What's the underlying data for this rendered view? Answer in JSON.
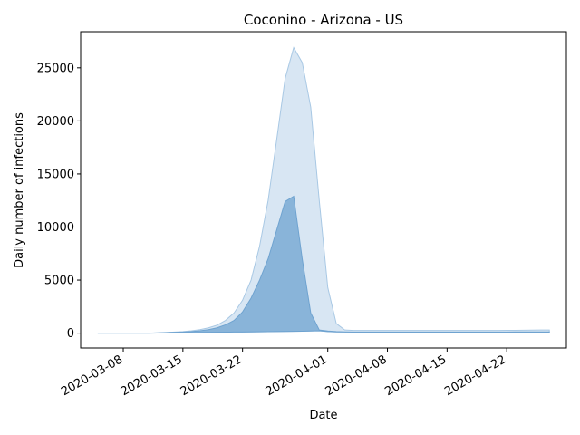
{
  "chart_data": {
    "type": "area",
    "title": "Coconino - Arizona - US",
    "xlabel": "Date",
    "ylabel": "Daily number of infections",
    "x_tick_labels": [
      "2020-03-08",
      "2020-03-15",
      "2020-03-22",
      "2020-04-01",
      "2020-04-08",
      "2020-04-15",
      "2020-04-22"
    ],
    "y_tick_labels": [
      "0",
      "5000",
      "10000",
      "15000",
      "20000",
      "25000"
    ],
    "x_ticks": [
      "2020-03-08",
      "2020-03-15",
      "2020-03-22",
      "2020-04-01",
      "2020-04-08",
      "2020-04-15",
      "2020-04-22"
    ],
    "y_ticks": [
      0,
      5000,
      10000,
      15000,
      20000,
      25000
    ],
    "xlim": [
      "2020-03-03",
      "2020-04-29"
    ],
    "ylim": [
      -1400,
      28400
    ],
    "grid": false,
    "legend": "none",
    "x": [
      "2020-03-05",
      "2020-03-06",
      "2020-03-07",
      "2020-03-08",
      "2020-03-09",
      "2020-03-10",
      "2020-03-11",
      "2020-03-12",
      "2020-03-13",
      "2020-03-14",
      "2020-03-15",
      "2020-03-16",
      "2020-03-17",
      "2020-03-18",
      "2020-03-19",
      "2020-03-20",
      "2020-03-21",
      "2020-03-22",
      "2020-03-23",
      "2020-03-24",
      "2020-03-25",
      "2020-03-26",
      "2020-03-27",
      "2020-03-28",
      "2020-03-29",
      "2020-03-30",
      "2020-03-31",
      "2020-04-01",
      "2020-04-02",
      "2020-04-03",
      "2020-04-04",
      "2020-04-05",
      "2020-04-06",
      "2020-04-07",
      "2020-04-08",
      "2020-04-09",
      "2020-04-10",
      "2020-04-11",
      "2020-04-12",
      "2020-04-13",
      "2020-04-14",
      "2020-04-15",
      "2020-04-16",
      "2020-04-17",
      "2020-04-18",
      "2020-04-19",
      "2020-04-20",
      "2020-04-21",
      "2020-04-22",
      "2020-04-23",
      "2020-04-24",
      "2020-04-25",
      "2020-04-26",
      "2020-04-27"
    ],
    "series": [
      {
        "values_lower": [
          0,
          0,
          0,
          0,
          0,
          0,
          0,
          10,
          20,
          30,
          40,
          50,
          60,
          70,
          80,
          90,
          100,
          110,
          120,
          130,
          140,
          150,
          160,
          170,
          180,
          200,
          220,
          150,
          120,
          100,
          90,
          90,
          90,
          90,
          90,
          90,
          90,
          90,
          90,
          90,
          90,
          90,
          90,
          90,
          90,
          90,
          90,
          90,
          90,
          90,
          90,
          90,
          90,
          90
        ],
        "values_upper": [
          0,
          0,
          0,
          0,
          0,
          0,
          0,
          30,
          60,
          100,
          150,
          220,
          330,
          500,
          750,
          1200,
          1900,
          3100,
          5000,
          8200,
          12500,
          18200,
          24000,
          26900,
          25500,
          21300,
          12500,
          4300,
          900,
          300,
          250,
          250,
          250,
          250,
          250,
          250,
          250,
          250,
          250,
          250,
          250,
          250,
          250,
          250,
          250,
          250,
          250,
          250,
          260,
          270,
          280,
          290,
          300,
          300
        ],
        "color": "#a8c8e4"
      },
      {
        "values_lower": [
          0,
          0,
          0,
          0,
          0,
          0,
          0,
          10,
          20,
          30,
          40,
          50,
          60,
          70,
          80,
          90,
          100,
          110,
          120,
          130,
          140,
          150,
          160,
          170,
          180,
          200,
          220,
          150,
          120,
          100,
          90,
          90,
          90,
          90,
          90,
          90,
          90,
          90,
          90,
          90,
          90,
          90,
          90,
          90,
          90,
          90,
          90,
          90,
          90,
          90,
          90,
          90,
          90,
          90
        ],
        "values_upper": [
          0,
          0,
          0,
          0,
          0,
          0,
          0,
          20,
          50,
          80,
          110,
          150,
          220,
          330,
          500,
          780,
          1200,
          2000,
          3300,
          5000,
          7000,
          9700,
          12400,
          12900,
          7000,
          1900,
          300,
          200,
          150,
          120,
          100,
          100,
          100,
          100,
          100,
          100,
          100,
          100,
          100,
          100,
          100,
          100,
          100,
          100,
          100,
          100,
          100,
          100,
          110,
          120,
          120,
          120,
          120,
          120
        ],
        "color": "#6fa3d0"
      }
    ]
  }
}
